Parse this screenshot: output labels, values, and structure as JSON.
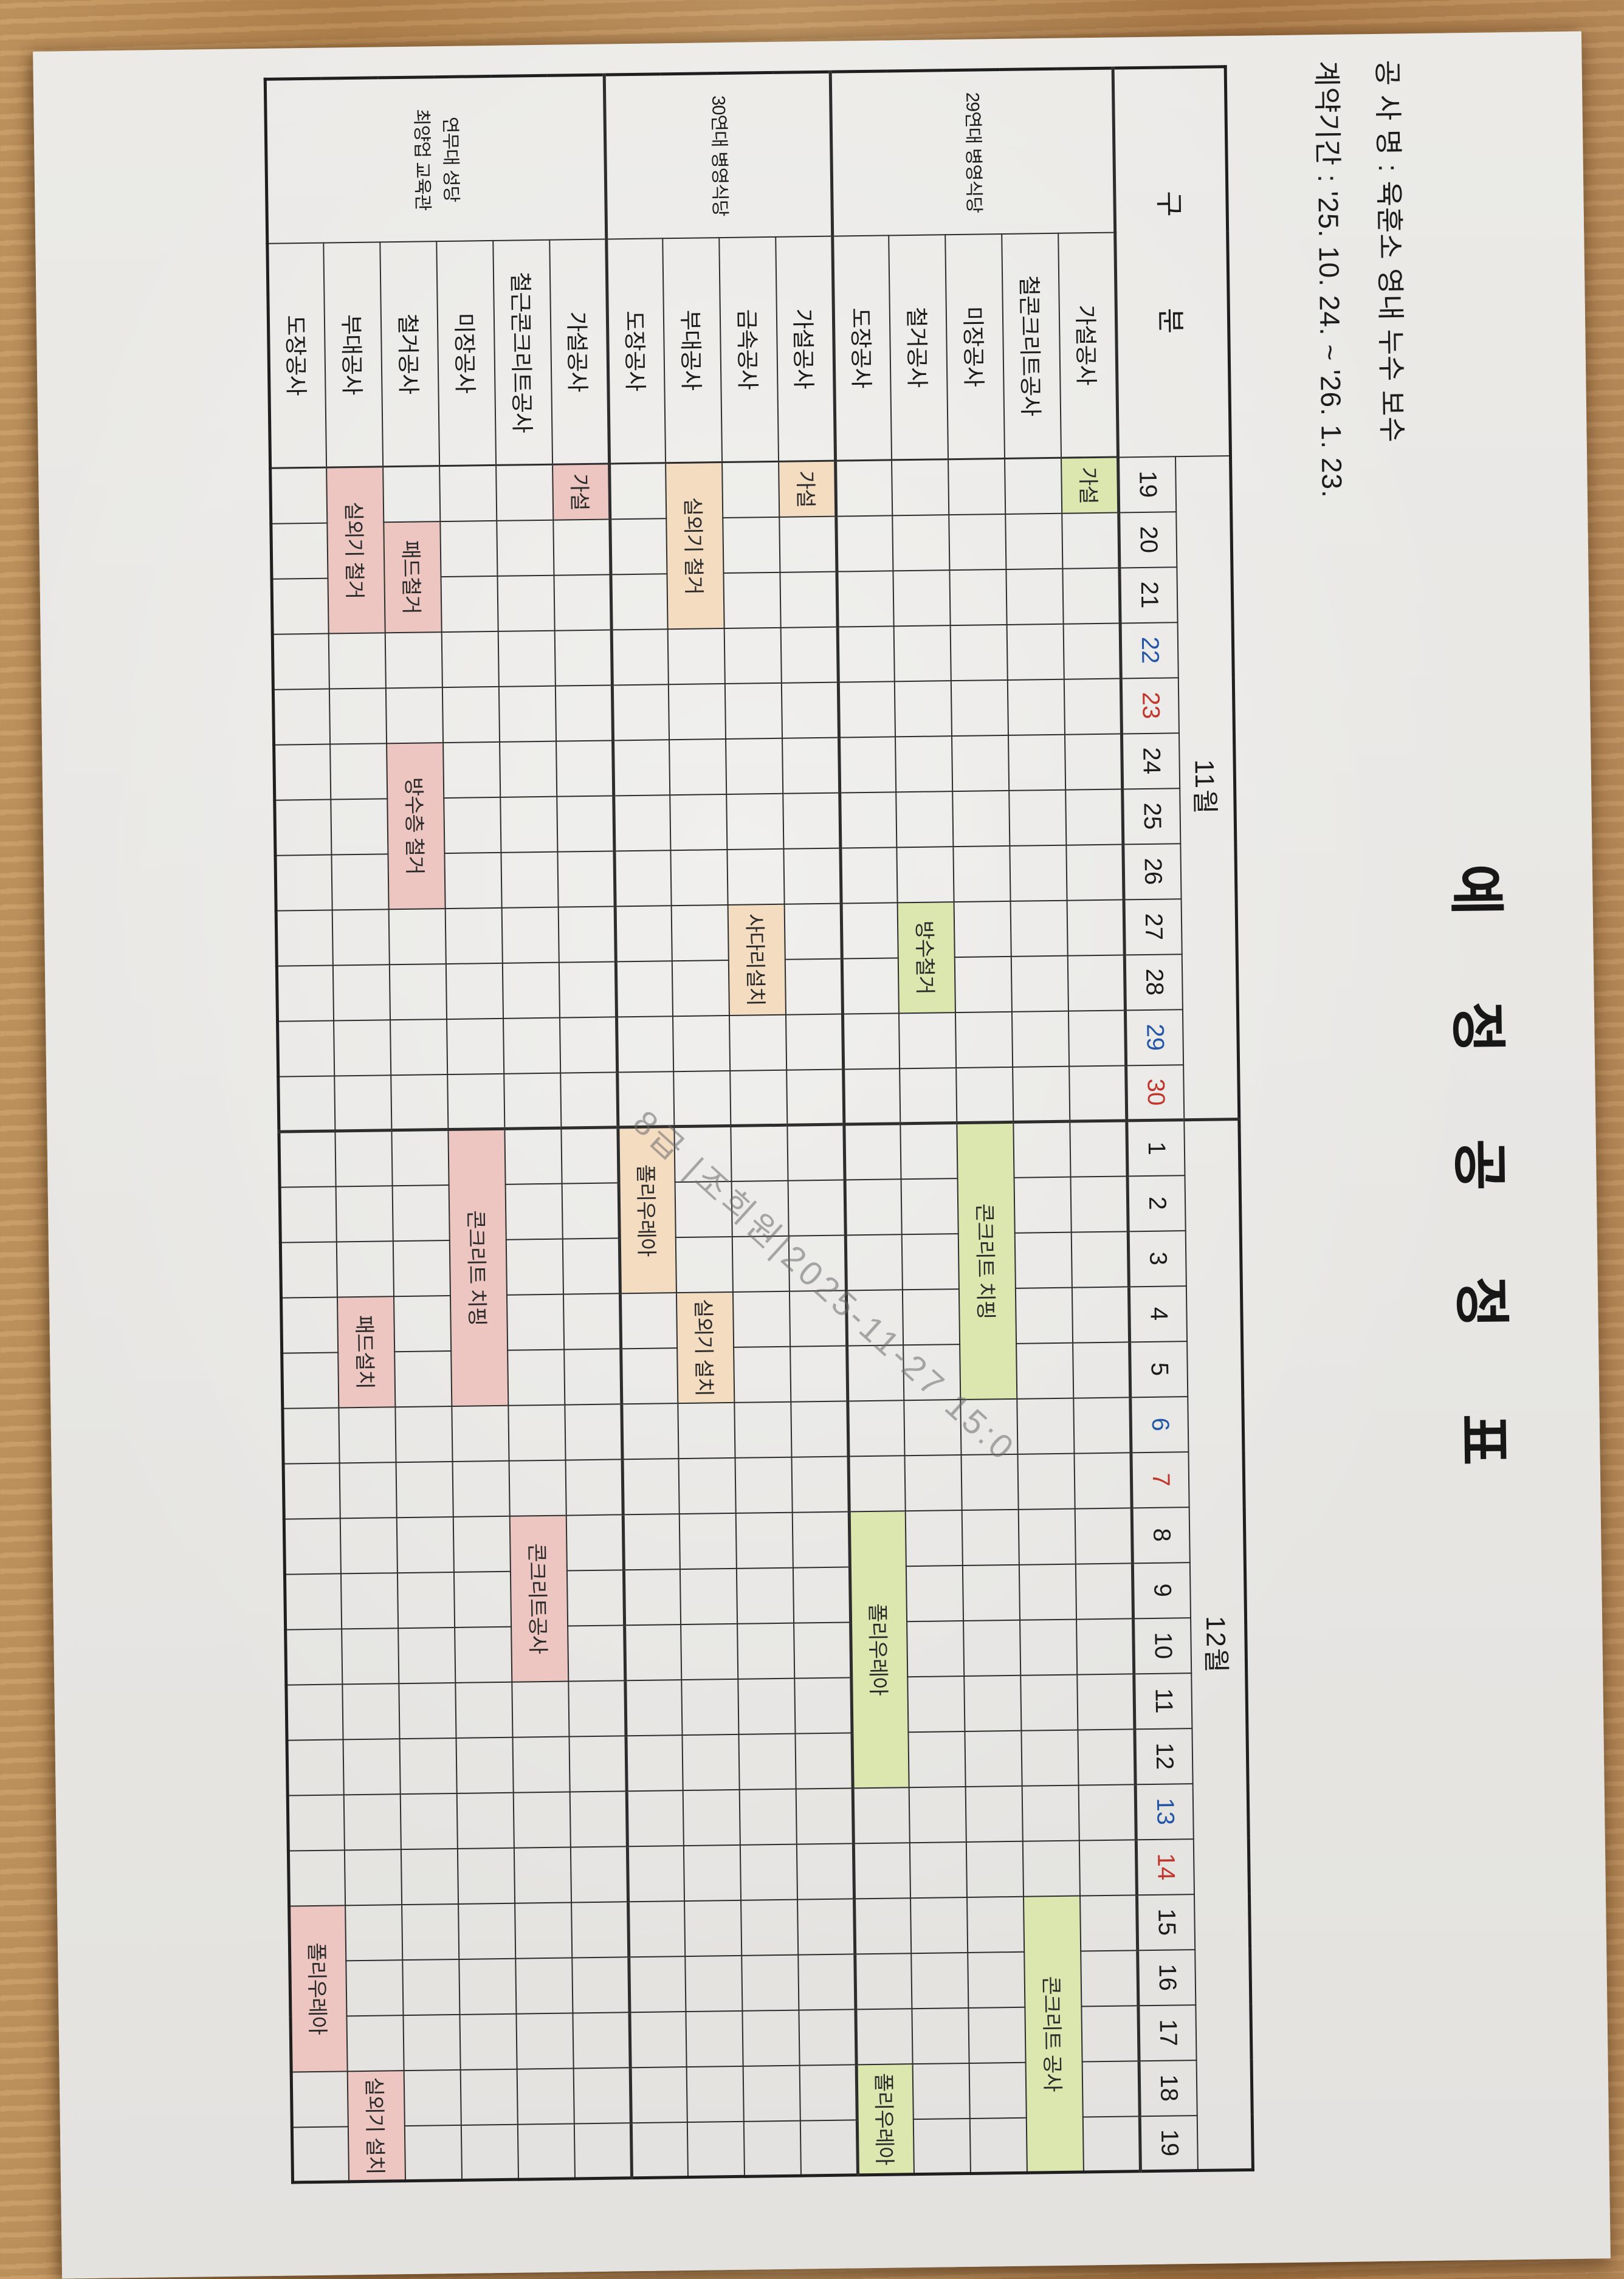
{
  "doc": {
    "title": "예 정 공 정 표",
    "project_line": "공 사 명 : 육훈소 영내 누수 보수",
    "contract_line": "계약기간 : '25. 10. 24.  ~  '26. 1. 23.",
    "gubun_left": "구",
    "gubun_right": "분",
    "watermark": "8급 |조희원|2025-11-27 15:0"
  },
  "colors": {
    "group_29": "#dbe7ae",
    "group_30": "#f4dcc1",
    "group_yeonmudae": "#eec6c1",
    "saturday": "#2356a6",
    "sunday": "#c2352b",
    "grid_line": "#2d2d2d",
    "paper": "#e9e8e5"
  },
  "chart_data": {
    "type": "table",
    "subtype": "gantt-schedule",
    "title": "예정공정표",
    "months": [
      {
        "label": "11월",
        "days": [
          {
            "d": 19
          },
          {
            "d": 20
          },
          {
            "d": 21
          },
          {
            "d": 22,
            "c": "sat"
          },
          {
            "d": 23,
            "c": "sun"
          },
          {
            "d": 24
          },
          {
            "d": 25
          },
          {
            "d": 26
          },
          {
            "d": 27
          },
          {
            "d": 28
          },
          {
            "d": 29,
            "c": "sat"
          },
          {
            "d": 30,
            "c": "sun"
          }
        ]
      },
      {
        "label": "12월",
        "days": [
          {
            "d": 1
          },
          {
            "d": 2
          },
          {
            "d": 3
          },
          {
            "d": 4
          },
          {
            "d": 5
          },
          {
            "d": 6,
            "c": "sat"
          },
          {
            "d": 7,
            "c": "sun"
          },
          {
            "d": 8
          },
          {
            "d": 9
          },
          {
            "d": 10
          },
          {
            "d": 11
          },
          {
            "d": 12
          },
          {
            "d": 13,
            "c": "sat"
          },
          {
            "d": 14,
            "c": "sun"
          },
          {
            "d": 15
          },
          {
            "d": 16
          },
          {
            "d": 17
          },
          {
            "d": 18
          },
          {
            "d": 19
          }
        ]
      }
    ],
    "total_day_columns": 31,
    "december_start_index": 13,
    "groups": [
      {
        "name_lines": [
          "29연대 병영식당"
        ],
        "color": "#dbe7ae",
        "tasks": [
          {
            "name": "가설공사",
            "bars": [
              {
                "label": "가설",
                "start": 1,
                "end": 1,
                "from": "11.19",
                "to": "11.19"
              }
            ]
          },
          {
            "name": "철콘크리트공사",
            "bars": [
              {
                "label": "콘크리트 공사",
                "start": 27,
                "end": 31,
                "from": "12.15",
                "to": "12.19"
              }
            ]
          },
          {
            "name": "미장공사",
            "bars": [
              {
                "label": "콘크리트 치핑",
                "start": 13,
                "end": 17,
                "from": "12.1",
                "to": "12.5"
              }
            ]
          },
          {
            "name": "철거공사",
            "bars": [
              {
                "label": "방수철거",
                "start": 9,
                "end": 10,
                "from": "11.27",
                "to": "11.28"
              }
            ]
          },
          {
            "name": "도장공사",
            "bars": [
              {
                "label": "폴리우레아",
                "start": 20,
                "end": 24,
                "from": "12.8",
                "to": "12.12"
              },
              {
                "label": "폴리우레아",
                "start": 30,
                "end": 31,
                "from": "12.18",
                "to": "12.19"
              }
            ]
          }
        ]
      },
      {
        "name_lines": [
          "30연대 병영식당"
        ],
        "color": "#f4dcc1",
        "tasks": [
          {
            "name": "가설공사",
            "bars": [
              {
                "label": "가설",
                "start": 1,
                "end": 1,
                "from": "11.19",
                "to": "11.19"
              }
            ]
          },
          {
            "name": "금속공사",
            "bars": [
              {
                "label": "사다리설치",
                "start": 9,
                "end": 10,
                "from": "11.27",
                "to": "11.28"
              }
            ]
          },
          {
            "name": "부대공사",
            "bars": [
              {
                "label": "실외기 철거",
                "start": 1,
                "end": 3,
                "from": "11.19",
                "to": "11.21"
              },
              {
                "label": "실외기 설치",
                "start": 16,
                "end": 17,
                "from": "12.4",
                "to": "12.5"
              }
            ]
          },
          {
            "name": "도장공사",
            "bars": [
              {
                "label": "폴리우레아",
                "start": 13,
                "end": 15,
                "from": "12.1",
                "to": "12.3"
              }
            ]
          }
        ]
      },
      {
        "name_lines": [
          "연무대 성당",
          "최양업 교육관"
        ],
        "color": "#eec6c1",
        "tasks": [
          {
            "name": "가설공사",
            "bars": [
              {
                "label": "가설",
                "start": 1,
                "end": 1,
                "from": "11.19",
                "to": "11.19"
              }
            ]
          },
          {
            "name": "철근콘크리트공사",
            "bars": [
              {
                "label": "콘크리트공사",
                "start": 20,
                "end": 22,
                "from": "12.8",
                "to": "12.10"
              }
            ]
          },
          {
            "name": "미장공사",
            "bars": [
              {
                "label": "콘크리트 치핑",
                "start": 13,
                "end": 17,
                "from": "12.1",
                "to": "12.5"
              }
            ]
          },
          {
            "name": "철거공사",
            "bars": [
              {
                "label": "패드철거",
                "start": 2,
                "end": 3,
                "from": "11.20",
                "to": "11.21"
              },
              {
                "label": "방수층 철거",
                "start": 6,
                "end": 8,
                "from": "11.24",
                "to": "11.26"
              }
            ]
          },
          {
            "name": "부대공사",
            "bars": [
              {
                "label": "실외기 철거",
                "start": 1,
                "end": 3,
                "from": "11.19",
                "to": "11.21"
              },
              {
                "label": "패드설치",
                "start": 16,
                "end": 17,
                "from": "12.4",
                "to": "12.5"
              },
              {
                "label": "실외기 설치",
                "start": 30,
                "end": 31,
                "from": "12.18",
                "to": "12.19"
              }
            ]
          },
          {
            "name": "도장공사",
            "bars": [
              {
                "label": "폴리우레아",
                "start": 27,
                "end": 29,
                "from": "12.15",
                "to": "12.17"
              }
            ]
          }
        ]
      }
    ]
  }
}
